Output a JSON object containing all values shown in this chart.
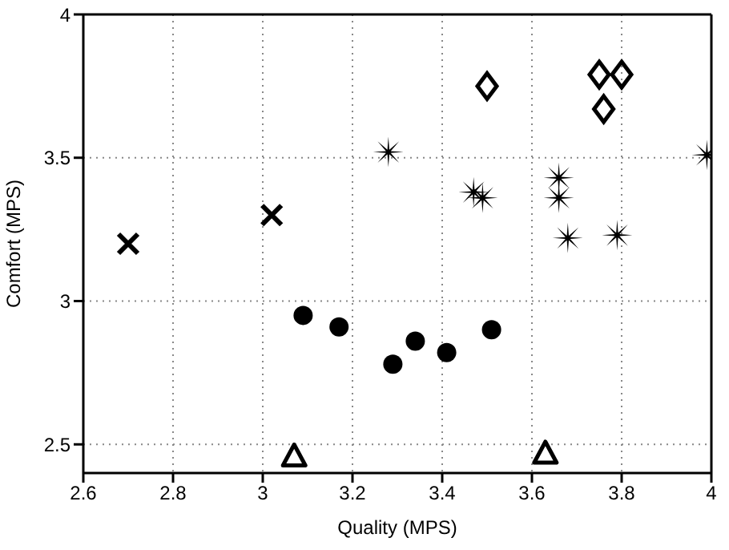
{
  "chart_data": {
    "type": "scatter",
    "xlabel": "Quality (MPS)",
    "ylabel": "Comfort (MPS)",
    "xlim": [
      2.6,
      4
    ],
    "ylim": [
      2.4,
      4
    ],
    "xticks": [
      2.6,
      2.8,
      3,
      3.2,
      3.4,
      3.6,
      3.8,
      4
    ],
    "yticks": [
      2.5,
      3,
      3.5,
      4
    ],
    "grid": true,
    "series": [
      {
        "marker": "cross",
        "color": "#000000",
        "x": [
          2.7,
          3.02
        ],
        "values": [
          3.2,
          3.3
        ]
      },
      {
        "marker": "circle",
        "color": "#000000",
        "x": [
          3.09,
          3.17,
          3.29,
          3.34,
          3.41,
          3.51
        ],
        "values": [
          2.95,
          2.91,
          2.78,
          2.86,
          2.82,
          2.9
        ]
      },
      {
        "marker": "triangle",
        "color": "#000000",
        "x": [
          3.07,
          3.63
        ],
        "values": [
          2.46,
          2.47
        ]
      },
      {
        "marker": "star",
        "color": "#000000",
        "x": [
          3.28,
          3.47,
          3.49,
          3.66,
          3.66,
          3.68,
          3.79,
          3.99
        ],
        "values": [
          3.52,
          3.38,
          3.36,
          3.43,
          3.36,
          3.22,
          3.23,
          3.51
        ]
      },
      {
        "marker": "diamond",
        "color": "#000000",
        "x": [
          3.5,
          3.75,
          3.8,
          3.76
        ],
        "values": [
          3.75,
          3.79,
          3.79,
          3.67
        ]
      }
    ]
  }
}
